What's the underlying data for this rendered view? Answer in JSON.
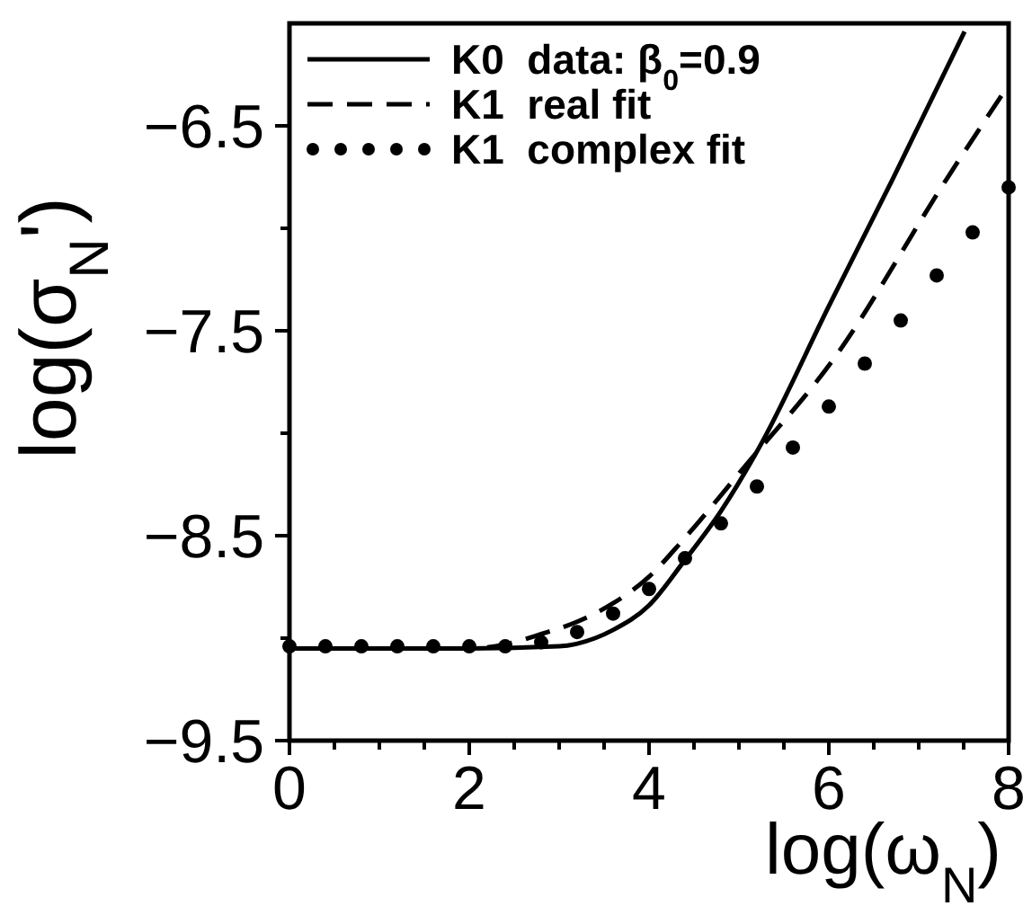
{
  "chart_data": {
    "type": "line",
    "xlabel": "log(ω$_{N}$)",
    "ylabel": "log(σ$_{N}$')",
    "xlim": [
      0,
      8
    ],
    "ylim": [
      -9.5,
      -6.0
    ],
    "xticks": [
      0,
      {
        "value": 0.5,
        "label": null
      },
      {
        "value": 1,
        "label": null
      },
      {
        "value": 1.5,
        "label": null
      },
      2,
      {
        "value": 2.5,
        "label": null
      },
      {
        "value": 3,
        "label": null
      },
      {
        "value": 3.5,
        "label": null
      },
      4,
      {
        "value": 4.5,
        "label": null
      },
      {
        "value": 5,
        "label": null
      },
      {
        "value": 5.5,
        "label": null
      },
      6,
      {
        "value": 6.5,
        "label": null
      },
      {
        "value": 7,
        "label": null
      },
      {
        "value": 7.5,
        "label": null
      },
      8
    ],
    "yticks": [
      -9.5,
      {
        "value": -9,
        "label": null
      },
      -8.5,
      {
        "value": -8,
        "label": null
      },
      -7.5,
      {
        "value": -7,
        "label": null
      },
      -6.5
    ],
    "legend": "top left",
    "grid": false,
    "series": [
      {
        "name": "K0  data: β$_{0}$=0.9",
        "line_style": "solid",
        "color": "#000000",
        "x": [
          0,
          1,
          2,
          3,
          3.4,
          3.6,
          4,
          4.38,
          4.8,
          5.25,
          6,
          6.71,
          7.51
        ],
        "values": [
          -9.05,
          -9.05,
          -9.05,
          -9.04,
          -9,
          -8.96,
          -8.84,
          -8.63,
          -8.38,
          -8.05,
          -7.38,
          -6.76,
          -6.04
        ]
      },
      {
        "name": "K1  real fit",
        "line_style": "dashed",
        "color": "#000000",
        "x": [
          0,
          1,
          2,
          2.4,
          2.8,
          3.2,
          3.6,
          4,
          4.38,
          5.05,
          6.05,
          7.31,
          8
        ],
        "values": [
          -9.05,
          -9.05,
          -9.05,
          -9.03,
          -8.98,
          -8.92,
          -8.83,
          -8.7,
          -8.52,
          -8.17,
          -7.64,
          -6.76,
          -6.3
        ]
      },
      {
        "name": "K1  complex fit",
        "type": "scatter",
        "marker": "circle",
        "color": "#000000",
        "x": [
          0,
          0.4,
          0.8,
          1.2,
          1.6,
          2,
          2.4,
          2.8,
          3.2,
          3.6,
          4,
          4.4,
          4.8,
          5.2,
          5.6,
          6,
          6.4,
          6.8,
          7.2,
          7.6,
          8
        ],
        "values": [
          -9.04,
          -9.04,
          -9.04,
          -9.04,
          -9.04,
          -9.04,
          -9.04,
          -9.02,
          -8.97,
          -8.88,
          -8.76,
          -8.61,
          -8.44,
          -8.26,
          -8.07,
          -7.87,
          -7.66,
          -7.45,
          -7.23,
          -7.02,
          -6.8
        ]
      }
    ]
  }
}
